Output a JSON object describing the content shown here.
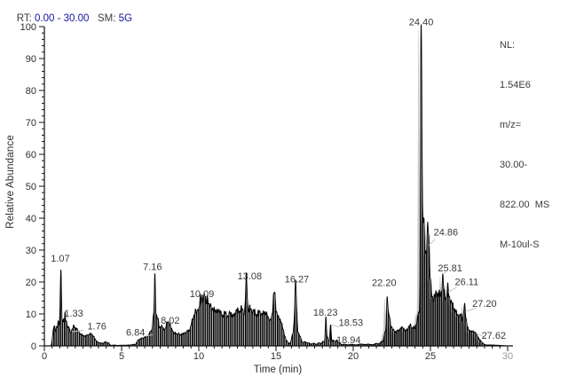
{
  "header": {
    "rt_label": "RT: ",
    "rt_value": "0.00 - 30.00",
    "sm_label": "   SM: ",
    "sm_value": "5G"
  },
  "legend": {
    "lines": [
      "NL:",
      "1.54E6",
      "m/z=",
      "30.00-",
      "822.00  MS",
      "M-10ul-S"
    ]
  },
  "colors": {
    "header_value_blue": "#1414a0",
    "text_gray": "#3a3a3a",
    "trace_black": "#000000",
    "ghost_gray": "#c9c9c9",
    "leader_green": "#b5cdb5",
    "muted_tick": "#9a9a9a"
  },
  "chart_data": {
    "type": "line",
    "title": "RT: 0.00 - 30.00  SM: 5G",
    "xlabel": "Time (min)",
    "ylabel": "Relative Abundance",
    "xlim": [
      0,
      30
    ],
    "ylim": [
      0,
      100
    ],
    "grid": false,
    "x_major_ticks": [
      0,
      5,
      10,
      15,
      20,
      25,
      30
    ],
    "x_minor_step": 0.5,
    "y_major_ticks": [
      0,
      10,
      20,
      30,
      40,
      50,
      60,
      70,
      80,
      90,
      100
    ],
    "y_minor_step": 2,
    "labeled_peaks": [
      {
        "rt": 1.07,
        "abundance": 24
      },
      {
        "rt": 1.33,
        "abundance": 9
      },
      {
        "rt": 1.76,
        "abundance": 5
      },
      {
        "rt": 6.84,
        "abundance": 4
      },
      {
        "rt": 7.16,
        "abundance": 21
      },
      {
        "rt": 8.02,
        "abundance": 7
      },
      {
        "rt": 10.09,
        "abundance": 16
      },
      {
        "rt": 13.08,
        "abundance": 20
      },
      {
        "rt": 16.27,
        "abundance": 19
      },
      {
        "rt": 18.23,
        "abundance": 9
      },
      {
        "rt": 18.53,
        "abundance": 7
      },
      {
        "rt": 18.94,
        "abundance": 2
      },
      {
        "rt": 22.2,
        "abundance": 16
      },
      {
        "rt": 24.4,
        "abundance": 100
      },
      {
        "rt": 24.86,
        "abundance": 34
      },
      {
        "rt": 25.81,
        "abundance": 23
      },
      {
        "rt": 26.11,
        "abundance": 17
      },
      {
        "rt": 27.2,
        "abundance": 12
      },
      {
        "rt": 27.62,
        "abundance": 4
      }
    ],
    "labels": [
      {
        "t": "1.07",
        "x": 1.03,
        "y": 26.4
      },
      {
        "t": "1.33",
        "x": 1.9,
        "y": 9.2,
        "l": [
          1.38,
          8.4,
          1.56,
          8.8
        ]
      },
      {
        "t": "1.76",
        "x": 3.4,
        "y": 5.2,
        "l": [
          1.8,
          4.4,
          2.55,
          4.9
        ]
      },
      {
        "t": "6.84",
        "x": 5.9,
        "y": 3.2,
        "l": [
          6.52,
          3.0,
          7.0,
          3.5
        ]
      },
      {
        "t": "7.16",
        "x": 7.0,
        "y": 23.8
      },
      {
        "t": "8.02",
        "x": 8.15,
        "y": 6.9
      },
      {
        "t": "10.09",
        "x": 10.2,
        "y": 15.3
      },
      {
        "t": "13.08",
        "x": 13.3,
        "y": 20.8
      },
      {
        "t": "16.27",
        "x": 16.35,
        "y": 19.9
      },
      {
        "t": "18.23",
        "x": 18.2,
        "y": 9.5
      },
      {
        "t": "18.53",
        "x": 19.85,
        "y": 6.2,
        "l": [
          18.58,
          6.6,
          19.1,
          5.9
        ]
      },
      {
        "t": "18.94",
        "x": 19.7,
        "y": 0.9,
        "l": [
          18.98,
          1.9,
          19.15,
          1.1
        ]
      },
      {
        "t": "22.20",
        "x": 22.0,
        "y": 18.8
      },
      {
        "t": "24.40",
        "x": 24.4,
        "y": 100.4
      },
      {
        "t": "24.86",
        "x": 26.0,
        "y": 34.6,
        "l": [
          24.9,
          31.5,
          25.3,
          33.4
        ]
      },
      {
        "t": "25.81",
        "x": 26.27,
        "y": 23.4,
        "l": [
          25.85,
          23.0,
          26.02,
          22.9
        ]
      },
      {
        "t": "26.11",
        "x": 27.35,
        "y": 19.0,
        "l": [
          26.15,
          16.8,
          26.7,
          18.4
        ]
      },
      {
        "t": "27.20",
        "x": 28.5,
        "y": 12.2,
        "l": [
          27.26,
          10.8,
          27.95,
          11.8
        ]
      },
      {
        "t": "27.62",
        "x": 29.1,
        "y": 2.2,
        "l": [
          27.95,
          3.9,
          28.55,
          2.7
        ]
      }
    ],
    "components": [
      [
        0.55,
        3,
        0.05
      ],
      [
        0.65,
        6,
        0.05
      ],
      [
        0.78,
        5,
        0.05
      ],
      [
        0.9,
        7,
        0.05
      ],
      [
        1.0,
        6,
        0.04
      ],
      [
        1.07,
        22.5,
        0.035
      ],
      [
        1.16,
        6,
        0.04
      ],
      [
        1.24,
        7,
        0.04
      ],
      [
        1.33,
        8.5,
        0.038
      ],
      [
        1.42,
        6.5,
        0.045
      ],
      [
        1.52,
        5,
        0.05
      ],
      [
        1.62,
        4.5,
        0.05
      ],
      [
        1.76,
        4.2,
        0.06
      ],
      [
        1.88,
        4.5,
        0.06
      ],
      [
        2.0,
        4.2,
        0.07
      ],
      [
        2.12,
        3.6,
        0.07
      ],
      [
        2.26,
        3.2,
        0.08
      ],
      [
        2.42,
        2.6,
        0.09
      ],
      [
        2.6,
        2.2,
        0.1
      ],
      [
        2.8,
        2.4,
        0.12
      ],
      [
        3.0,
        2.6,
        0.12
      ],
      [
        3.2,
        2.2,
        0.12
      ],
      [
        3.45,
        1.0,
        0.1
      ],
      [
        3.7,
        0.9,
        0.1
      ],
      [
        3.95,
        1.3,
        0.08
      ],
      [
        4.15,
        0.9,
        0.07
      ],
      [
        4.5,
        0.25,
        0.15
      ],
      [
        5.0,
        0.2,
        0.2
      ],
      [
        5.5,
        0.25,
        0.2
      ],
      [
        5.8,
        0.4,
        0.1
      ],
      [
        6.05,
        1.4,
        0.08
      ],
      [
        6.2,
        1.7,
        0.08
      ],
      [
        6.35,
        2.0,
        0.07
      ],
      [
        6.5,
        2.4,
        0.07
      ],
      [
        6.65,
        2.8,
        0.06
      ],
      [
        6.78,
        3.2,
        0.05
      ],
      [
        6.88,
        3.6,
        0.045
      ],
      [
        6.98,
        3.4,
        0.05
      ],
      [
        7.06,
        4.5,
        0.045
      ],
      [
        7.16,
        17,
        0.04
      ],
      [
        7.16,
        4,
        0.12
      ],
      [
        7.28,
        6,
        0.05
      ],
      [
        7.38,
        5.5,
        0.05
      ],
      [
        7.5,
        5,
        0.06
      ],
      [
        7.62,
        4.6,
        0.06
      ],
      [
        7.75,
        4.4,
        0.07
      ],
      [
        7.9,
        4.8,
        0.07
      ],
      [
        8.02,
        5.6,
        0.07
      ],
      [
        8.15,
        4.6,
        0.07
      ],
      [
        8.3,
        4.2,
        0.08
      ],
      [
        8.5,
        3.6,
        0.09
      ],
      [
        8.7,
        3.2,
        0.09
      ],
      [
        8.9,
        3.2,
        0.09
      ],
      [
        9.1,
        3.6,
        0.09
      ],
      [
        9.3,
        4.0,
        0.09
      ],
      [
        9.5,
        4.6,
        0.09
      ],
      [
        9.65,
        5.4,
        0.08
      ],
      [
        9.8,
        6.5,
        0.08
      ],
      [
        10.3,
        8,
        0.35
      ],
      [
        11.1,
        7.5,
        0.5
      ],
      [
        12.2,
        7,
        0.6
      ],
      [
        13.3,
        7.5,
        0.55
      ],
      [
        14.3,
        7,
        0.45
      ],
      [
        15.0,
        5,
        0.3
      ],
      [
        15.4,
        2.5,
        0.25
      ],
      [
        9.95,
        5.5,
        0.05
      ],
      [
        10.09,
        7,
        0.05
      ],
      [
        10.22,
        6,
        0.05
      ],
      [
        10.38,
        5.5,
        0.06
      ],
      [
        10.55,
        4.5,
        0.06
      ],
      [
        10.75,
        3.5,
        0.07
      ],
      [
        11.0,
        2.5,
        0.08
      ],
      [
        11.3,
        2,
        0.1
      ],
      [
        11.7,
        1.6,
        0.1
      ],
      [
        12.05,
        1.8,
        0.1
      ],
      [
        12.45,
        2.4,
        0.1
      ],
      [
        12.75,
        2.6,
        0.1
      ],
      [
        13.08,
        11.5,
        0.055
      ],
      [
        13.3,
        2.5,
        0.08
      ],
      [
        13.55,
        2,
        0.09
      ],
      [
        13.9,
        1.6,
        0.12
      ],
      [
        14.3,
        1.8,
        0.12
      ],
      [
        14.88,
        9.5,
        0.07
      ],
      [
        15.1,
        2.5,
        0.08
      ],
      [
        15.35,
        2,
        0.09
      ],
      [
        16.1,
        2.5,
        0.1
      ],
      [
        16.27,
        16.5,
        0.06
      ],
      [
        16.27,
        2.5,
        0.15
      ],
      [
        16.45,
        2.5,
        0.08
      ],
      [
        16.6,
        1.8,
        0.08
      ],
      [
        16.85,
        1.2,
        0.09
      ],
      [
        17.1,
        0.9,
        0.12
      ],
      [
        17.45,
        0.8,
        0.12
      ],
      [
        17.8,
        1.0,
        0.1
      ],
      [
        18.05,
        1.4,
        0.07
      ],
      [
        18.23,
        8.2,
        0.042
      ],
      [
        18.36,
        2.6,
        0.05
      ],
      [
        18.53,
        6.3,
        0.042
      ],
      [
        18.68,
        1.6,
        0.06
      ],
      [
        18.8,
        1.2,
        0.06
      ],
      [
        18.94,
        1.9,
        0.05
      ],
      [
        19.1,
        0.9,
        0.07
      ],
      [
        19.4,
        0.5,
        0.15
      ],
      [
        19.9,
        0.45,
        0.2
      ],
      [
        20.5,
        0.55,
        0.2
      ],
      [
        21.0,
        0.5,
        0.18
      ],
      [
        21.5,
        0.7,
        0.15
      ],
      [
        21.85,
        1.2,
        0.1
      ],
      [
        22.05,
        3.5,
        0.06
      ],
      [
        22.2,
        14.5,
        0.05
      ],
      [
        22.33,
        7.5,
        0.06
      ],
      [
        22.47,
        4.5,
        0.08
      ],
      [
        22.65,
        3.2,
        0.09
      ],
      [
        22.85,
        2.8,
        0.1
      ],
      [
        23.05,
        3.2,
        0.1
      ],
      [
        23.25,
        3.6,
        0.1
      ],
      [
        23.5,
        3.2,
        0.1
      ],
      [
        23.7,
        4.4,
        0.09
      ],
      [
        23.9,
        4.0,
        0.08
      ],
      [
        24.08,
        4.6,
        0.07
      ],
      [
        24.22,
        6,
        0.06
      ],
      [
        23.4,
        1.5,
        0.7
      ],
      [
        24.4,
        95,
        0.042
      ],
      [
        24.4,
        5,
        0.15
      ],
      [
        24.52,
        25,
        0.07
      ],
      [
        24.62,
        18,
        0.07
      ],
      [
        24.74,
        12,
        0.07
      ],
      [
        24.86,
        27,
        0.07
      ],
      [
        24.86,
        5,
        0.2
      ],
      [
        25.0,
        9,
        0.08
      ],
      [
        25.15,
        7,
        0.09
      ],
      [
        25.3,
        8,
        0.09
      ],
      [
        25.45,
        9.5,
        0.09
      ],
      [
        25.6,
        8,
        0.08
      ],
      [
        25.72,
        7,
        0.07
      ],
      [
        25.81,
        12,
        0.06
      ],
      [
        25.95,
        10,
        0.07
      ],
      [
        26.11,
        11,
        0.065
      ],
      [
        26.25,
        8.5,
        0.08
      ],
      [
        26.42,
        7,
        0.09
      ],
      [
        26.6,
        6,
        0.1
      ],
      [
        26.8,
        5.5,
        0.1
      ],
      [
        27.0,
        6.5,
        0.09
      ],
      [
        27.2,
        9.5,
        0.07
      ],
      [
        27.35,
        5,
        0.08
      ],
      [
        26.0,
        4.5,
        0.8
      ],
      [
        27.55,
        3.0,
        0.1
      ],
      [
        27.75,
        3.2,
        0.12
      ],
      [
        27.95,
        2.8,
        0.1
      ],
      [
        28.15,
        1.6,
        0.1
      ],
      [
        28.35,
        0.7,
        0.12
      ],
      [
        28.8,
        0.25,
        0.3
      ],
      [
        29.4,
        0.15,
        0.3
      ]
    ]
  }
}
